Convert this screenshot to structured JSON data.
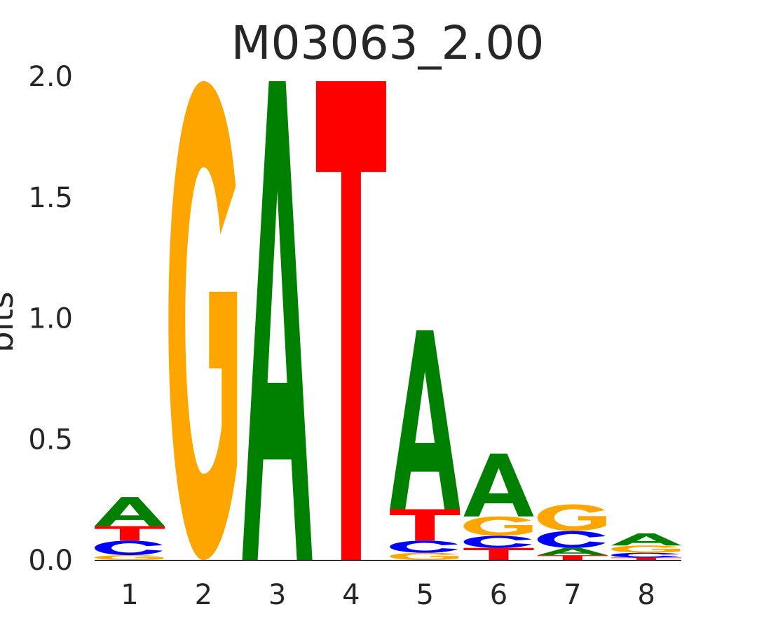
{
  "chart_data": {
    "type": "sequence-logo",
    "title": "M03063_2.00",
    "ylabel": "bits",
    "xlabel": "",
    "ylim": [
      0,
      2
    ],
    "yticks": [
      "0.0",
      "0.5",
      "1.0",
      "1.5",
      "2.0"
    ],
    "positions": [
      "1",
      "2",
      "3",
      "4",
      "5",
      "6",
      "7",
      "8"
    ],
    "colors": {
      "A": "#008000",
      "C": "#0000ff",
      "G": "#ffa500",
      "T": "#ff0000"
    },
    "stacks": [
      [
        {
          "base": "G",
          "bits": 0.02
        },
        {
          "base": "C",
          "bits": 0.06
        },
        {
          "base": "T",
          "bits": 0.06
        },
        {
          "base": "A",
          "bits": 0.12
        }
      ],
      [
        {
          "base": "G",
          "bits": 1.98
        }
      ],
      [
        {
          "base": "A",
          "bits": 1.98
        }
      ],
      [
        {
          "base": "T",
          "bits": 1.98
        }
      ],
      [
        {
          "base": "G",
          "bits": 0.03
        },
        {
          "base": "C",
          "bits": 0.05
        },
        {
          "base": "T",
          "bits": 0.13
        },
        {
          "base": "A",
          "bits": 0.74
        }
      ],
      [
        {
          "base": "T",
          "bits": 0.05
        },
        {
          "base": "C",
          "bits": 0.05
        },
        {
          "base": "G",
          "bits": 0.08
        },
        {
          "base": "A",
          "bits": 0.26
        }
      ],
      [
        {
          "base": "T",
          "bits": 0.02
        },
        {
          "base": "A",
          "bits": 0.03
        },
        {
          "base": "C",
          "bits": 0.07
        },
        {
          "base": "G",
          "bits": 0.11
        }
      ],
      [
        {
          "base": "T",
          "bits": 0.01
        },
        {
          "base": "C",
          "bits": 0.02
        },
        {
          "base": "G",
          "bits": 0.03
        },
        {
          "base": "A",
          "bits": 0.05
        }
      ]
    ]
  }
}
